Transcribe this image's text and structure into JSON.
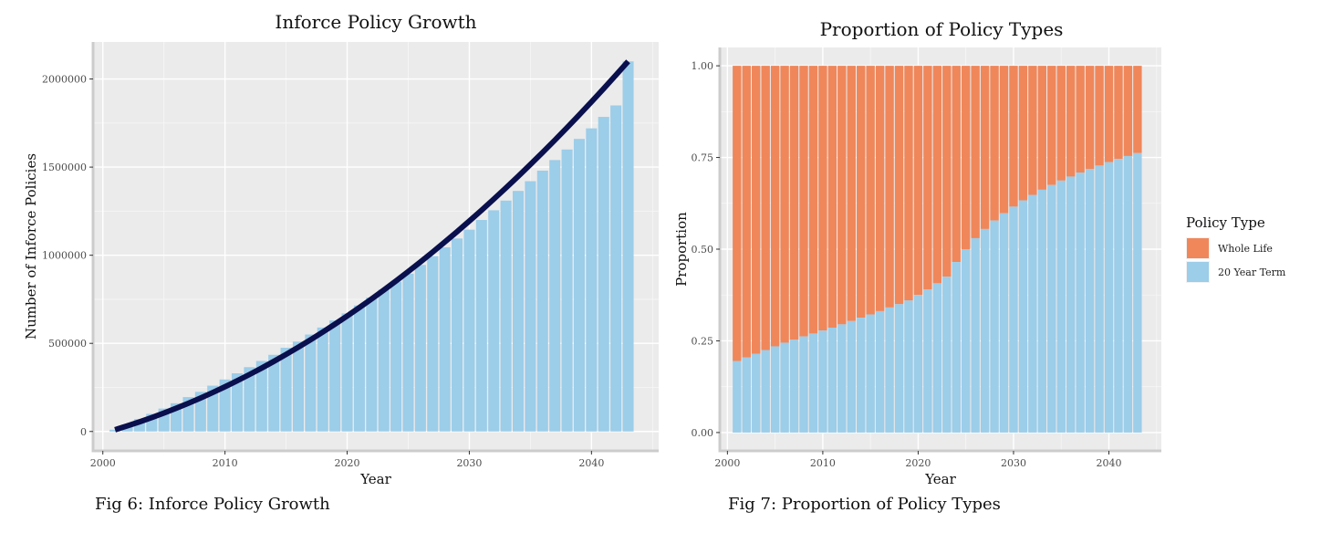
{
  "captions": [
    "Fig 6: Inforce Policy Growth",
    "Fig 7: Proportion of Policy Types"
  ],
  "chart_data": [
    {
      "type": "bar",
      "title": "Inforce Policy Growth",
      "xlabel": "Year",
      "ylabel": "Number of Inforce Policies",
      "xlim": [
        1999.2,
        2045.5
      ],
      "ylim": [
        -110000,
        2210000
      ],
      "xticks": [
        2000,
        2010,
        2020,
        2030,
        2040
      ],
      "yticks": [
        0,
        500000,
        1000000,
        1500000,
        2000000
      ],
      "grid": true,
      "bar_color": "#9ccde9",
      "line_color": "#0a0f4d",
      "x": [
        2001,
        2002,
        2003,
        2004,
        2005,
        2006,
        2007,
        2008,
        2009,
        2010,
        2011,
        2012,
        2013,
        2014,
        2015,
        2016,
        2017,
        2018,
        2019,
        2020,
        2021,
        2022,
        2023,
        2024,
        2025,
        2026,
        2027,
        2028,
        2029,
        2030,
        2031,
        2032,
        2033,
        2034,
        2035,
        2036,
        2037,
        2038,
        2039,
        2040,
        2041,
        2042,
        2043
      ],
      "series": [
        {
          "values": [
            10000,
            40000,
            70000,
            100000,
            130000,
            160000,
            195000,
            225000,
            260000,
            295000,
            330000,
            365000,
            400000,
            435000,
            475000,
            510000,
            550000,
            590000,
            630000,
            670000,
            715000,
            760000,
            805000,
            850000,
            895000,
            945000,
            995000,
            1045000,
            1095000,
            1145000,
            1200000,
            1255000,
            1310000,
            1365000,
            1420000,
            1480000,
            1540000,
            1600000,
            1660000,
            1720000,
            1785000,
            1850000,
            2100000
          ]
        }
      ],
      "trend": [
        10000,
        2100000
      ]
    },
    {
      "type": "bar",
      "stacked": true,
      "title": "Proportion of Policy Types",
      "xlabel": "Year",
      "ylabel": "Proportion",
      "xlim": [
        1999.2,
        2045.5
      ],
      "ylim": [
        -0.05,
        1.05
      ],
      "xticks": [
        2000,
        2010,
        2020,
        2030,
        2040
      ],
      "yticks": [
        "0.00",
        "0.25",
        "0.50",
        "0.75",
        "1.00"
      ],
      "grid": true,
      "legend": {
        "title": "Policy Type",
        "position": "right"
      },
      "x": [
        2001,
        2002,
        2003,
        2004,
        2005,
        2006,
        2007,
        2008,
        2009,
        2010,
        2011,
        2012,
        2013,
        2014,
        2015,
        2016,
        2017,
        2018,
        2019,
        2020,
        2021,
        2022,
        2023,
        2024,
        2025,
        2026,
        2027,
        2028,
        2029,
        2030,
        2031,
        2032,
        2033,
        2034,
        2035,
        2036,
        2037,
        2038,
        2039,
        2040,
        2041,
        2042,
        2043
      ],
      "series": [
        {
          "name": "20 Year Term",
          "color": "#9ccde9",
          "values": [
            0.195,
            0.205,
            0.215,
            0.225,
            0.235,
            0.245,
            0.253,
            0.262,
            0.27,
            0.278,
            0.286,
            0.295,
            0.304,
            0.313,
            0.322,
            0.331,
            0.341,
            0.35,
            0.36,
            0.375,
            0.39,
            0.407,
            0.425,
            0.465,
            0.5,
            0.53,
            0.555,
            0.578,
            0.598,
            0.616,
            0.633,
            0.648,
            0.662,
            0.675,
            0.687,
            0.698,
            0.709,
            0.719,
            0.728,
            0.737,
            0.746,
            0.754,
            0.762
          ]
        },
        {
          "name": "Whole Life",
          "color": "#ef875b",
          "values": [
            0.805,
            0.795,
            0.785,
            0.775,
            0.765,
            0.755,
            0.747,
            0.738,
            0.73,
            0.722,
            0.714,
            0.705,
            0.696,
            0.687,
            0.678,
            0.669,
            0.659,
            0.65,
            0.64,
            0.625,
            0.61,
            0.593,
            0.575,
            0.535,
            0.5,
            0.47,
            0.445,
            0.422,
            0.402,
            0.384,
            0.367,
            0.352,
            0.338,
            0.325,
            0.313,
            0.302,
            0.291,
            0.281,
            0.272,
            0.263,
            0.254,
            0.246,
            0.238
          ]
        }
      ],
      "legend_order": [
        "Whole Life",
        "20 Year Term"
      ]
    }
  ]
}
